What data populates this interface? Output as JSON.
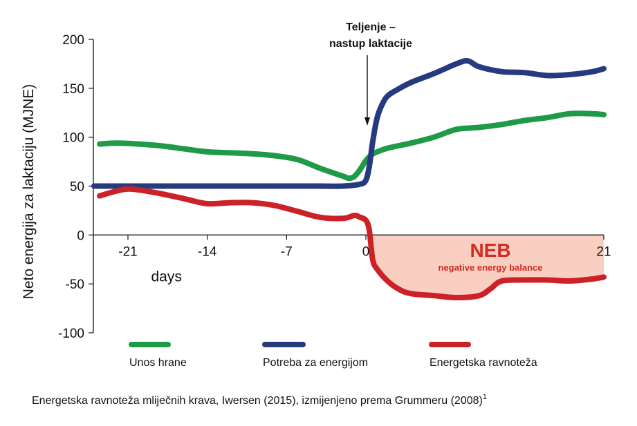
{
  "chart_data": {
    "type": "line",
    "ylabel": "Neto energija za laktaciju (MJNE)",
    "xlabel": "days",
    "ylim": [
      -100,
      200
    ],
    "xlim": [
      -24,
      21
    ],
    "yticks": [
      200,
      150,
      100,
      50,
      0,
      -50,
      -100
    ],
    "xticks": [
      -21,
      -14,
      -7,
      0,
      21
    ],
    "annotation": "Teljenje –\nnastup laktacije",
    "annotation_x": 0,
    "neb_region": {
      "label": "NEB",
      "sublabel": "negative energy balance",
      "x_start": 0.5,
      "x_end": 21,
      "fill": "#f8cfc1",
      "text_color": "#d42a20"
    },
    "series": [
      {
        "name": "Unos hrane",
        "color": "#1f9a46",
        "x": [
          -23.5,
          -22,
          -20,
          -18,
          -16,
          -14,
          -12,
          -10,
          -8,
          -6,
          -4,
          -2,
          -1.5,
          -1,
          -0.5,
          0,
          0.5,
          1,
          2,
          4,
          6,
          8,
          10,
          12,
          14,
          16,
          18,
          20,
          21
        ],
        "y": [
          93,
          94,
          93,
          91,
          88,
          85,
          84,
          83,
          81,
          77,
          68,
          60,
          58,
          60,
          67,
          76,
          82,
          85,
          89,
          94,
          100,
          108,
          110,
          113,
          117,
          120,
          124,
          124,
          123
        ]
      },
      {
        "name": "Potreba za energijom",
        "color": "#263a80",
        "x": [
          -24,
          -22,
          -20,
          -18,
          -16,
          -14,
          -12,
          -10,
          -8,
          -6,
          -4,
          -2,
          -0.5,
          0,
          0.3,
          0.6,
          1,
          1.5,
          2,
          3,
          4,
          6,
          8,
          9,
          10,
          12,
          14,
          16,
          18,
          20,
          21
        ],
        "y": [
          50,
          50,
          50,
          50,
          50,
          50,
          50,
          50,
          50,
          50,
          50,
          50,
          52,
          56,
          70,
          95,
          120,
          135,
          143,
          150,
          156,
          165,
          175,
          178,
          172,
          167,
          166,
          163,
          164,
          167,
          170
        ]
      },
      {
        "name": "Energetska ravnoteža",
        "color": "#cc2127",
        "x": [
          -23.5,
          -22,
          -21,
          -20,
          -18,
          -16,
          -14,
          -12,
          -10,
          -8,
          -6,
          -4,
          -2,
          -1,
          -0.5,
          0,
          0.3,
          0.6,
          1,
          2,
          3,
          4,
          6,
          8,
          10,
          11,
          12,
          14,
          16,
          18,
          20,
          21
        ],
        "y": [
          40,
          45,
          47,
          46,
          42,
          37,
          32,
          33,
          33,
          30,
          24,
          18,
          17,
          20,
          18,
          15,
          5,
          -25,
          -35,
          -48,
          -56,
          -60,
          -62,
          -64,
          -62,
          -55,
          -47,
          -46,
          -46,
          -47,
          -45,
          -43
        ]
      }
    ]
  },
  "legend": [
    {
      "label": "Unos hrane",
      "color": "#1f9a46"
    },
    {
      "label": "Potreba za energijom",
      "color": "#263a80"
    },
    {
      "label": "Energetska ravnoteža",
      "color": "#cc2127"
    }
  ],
  "caption": "Energetska ravnoteža mliječnih krava, Iwersen (2015), izmijenjeno prema Grummeru (2008)",
  "caption_sup": "1"
}
